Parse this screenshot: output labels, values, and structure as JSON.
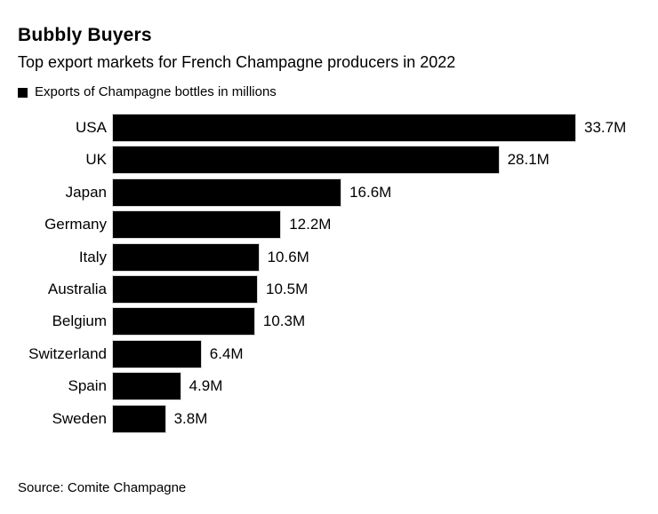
{
  "header": {
    "title": "Bubbly Buyers",
    "subtitle": "Top export markets for French Champagne producers in 2022"
  },
  "legend": {
    "marker_color": "#000000",
    "label": "Exports of Champagne bottles in millions"
  },
  "chart_data": {
    "type": "bar",
    "orientation": "horizontal",
    "title": "Bubbly Buyers",
    "subtitle": "Top export markets for French Champagne producers in 2022",
    "series_label": "Exports of Champagne bottles in millions",
    "categories": [
      "USA",
      "UK",
      "Japan",
      "Germany",
      "Italy",
      "Australia",
      "Belgium",
      "Switzerland",
      "Spain",
      "Sweden"
    ],
    "values": [
      33.7,
      28.1,
      16.6,
      12.2,
      10.6,
      10.5,
      10.3,
      6.4,
      4.9,
      3.8
    ],
    "value_labels": [
      "33.7M",
      "28.1M",
      "16.6M",
      "12.2M",
      "10.6M",
      "10.5M",
      "10.3M",
      "6.4M",
      "4.9M",
      "3.8M"
    ],
    "unit": "millions of bottles",
    "bar_color": "#000000",
    "xlim": [
      0,
      33.7
    ],
    "grid": false,
    "legend_position": "top-left",
    "value_labels_position": "end-of-bar"
  },
  "footer": {
    "source": "Source: Comite Champagne"
  }
}
